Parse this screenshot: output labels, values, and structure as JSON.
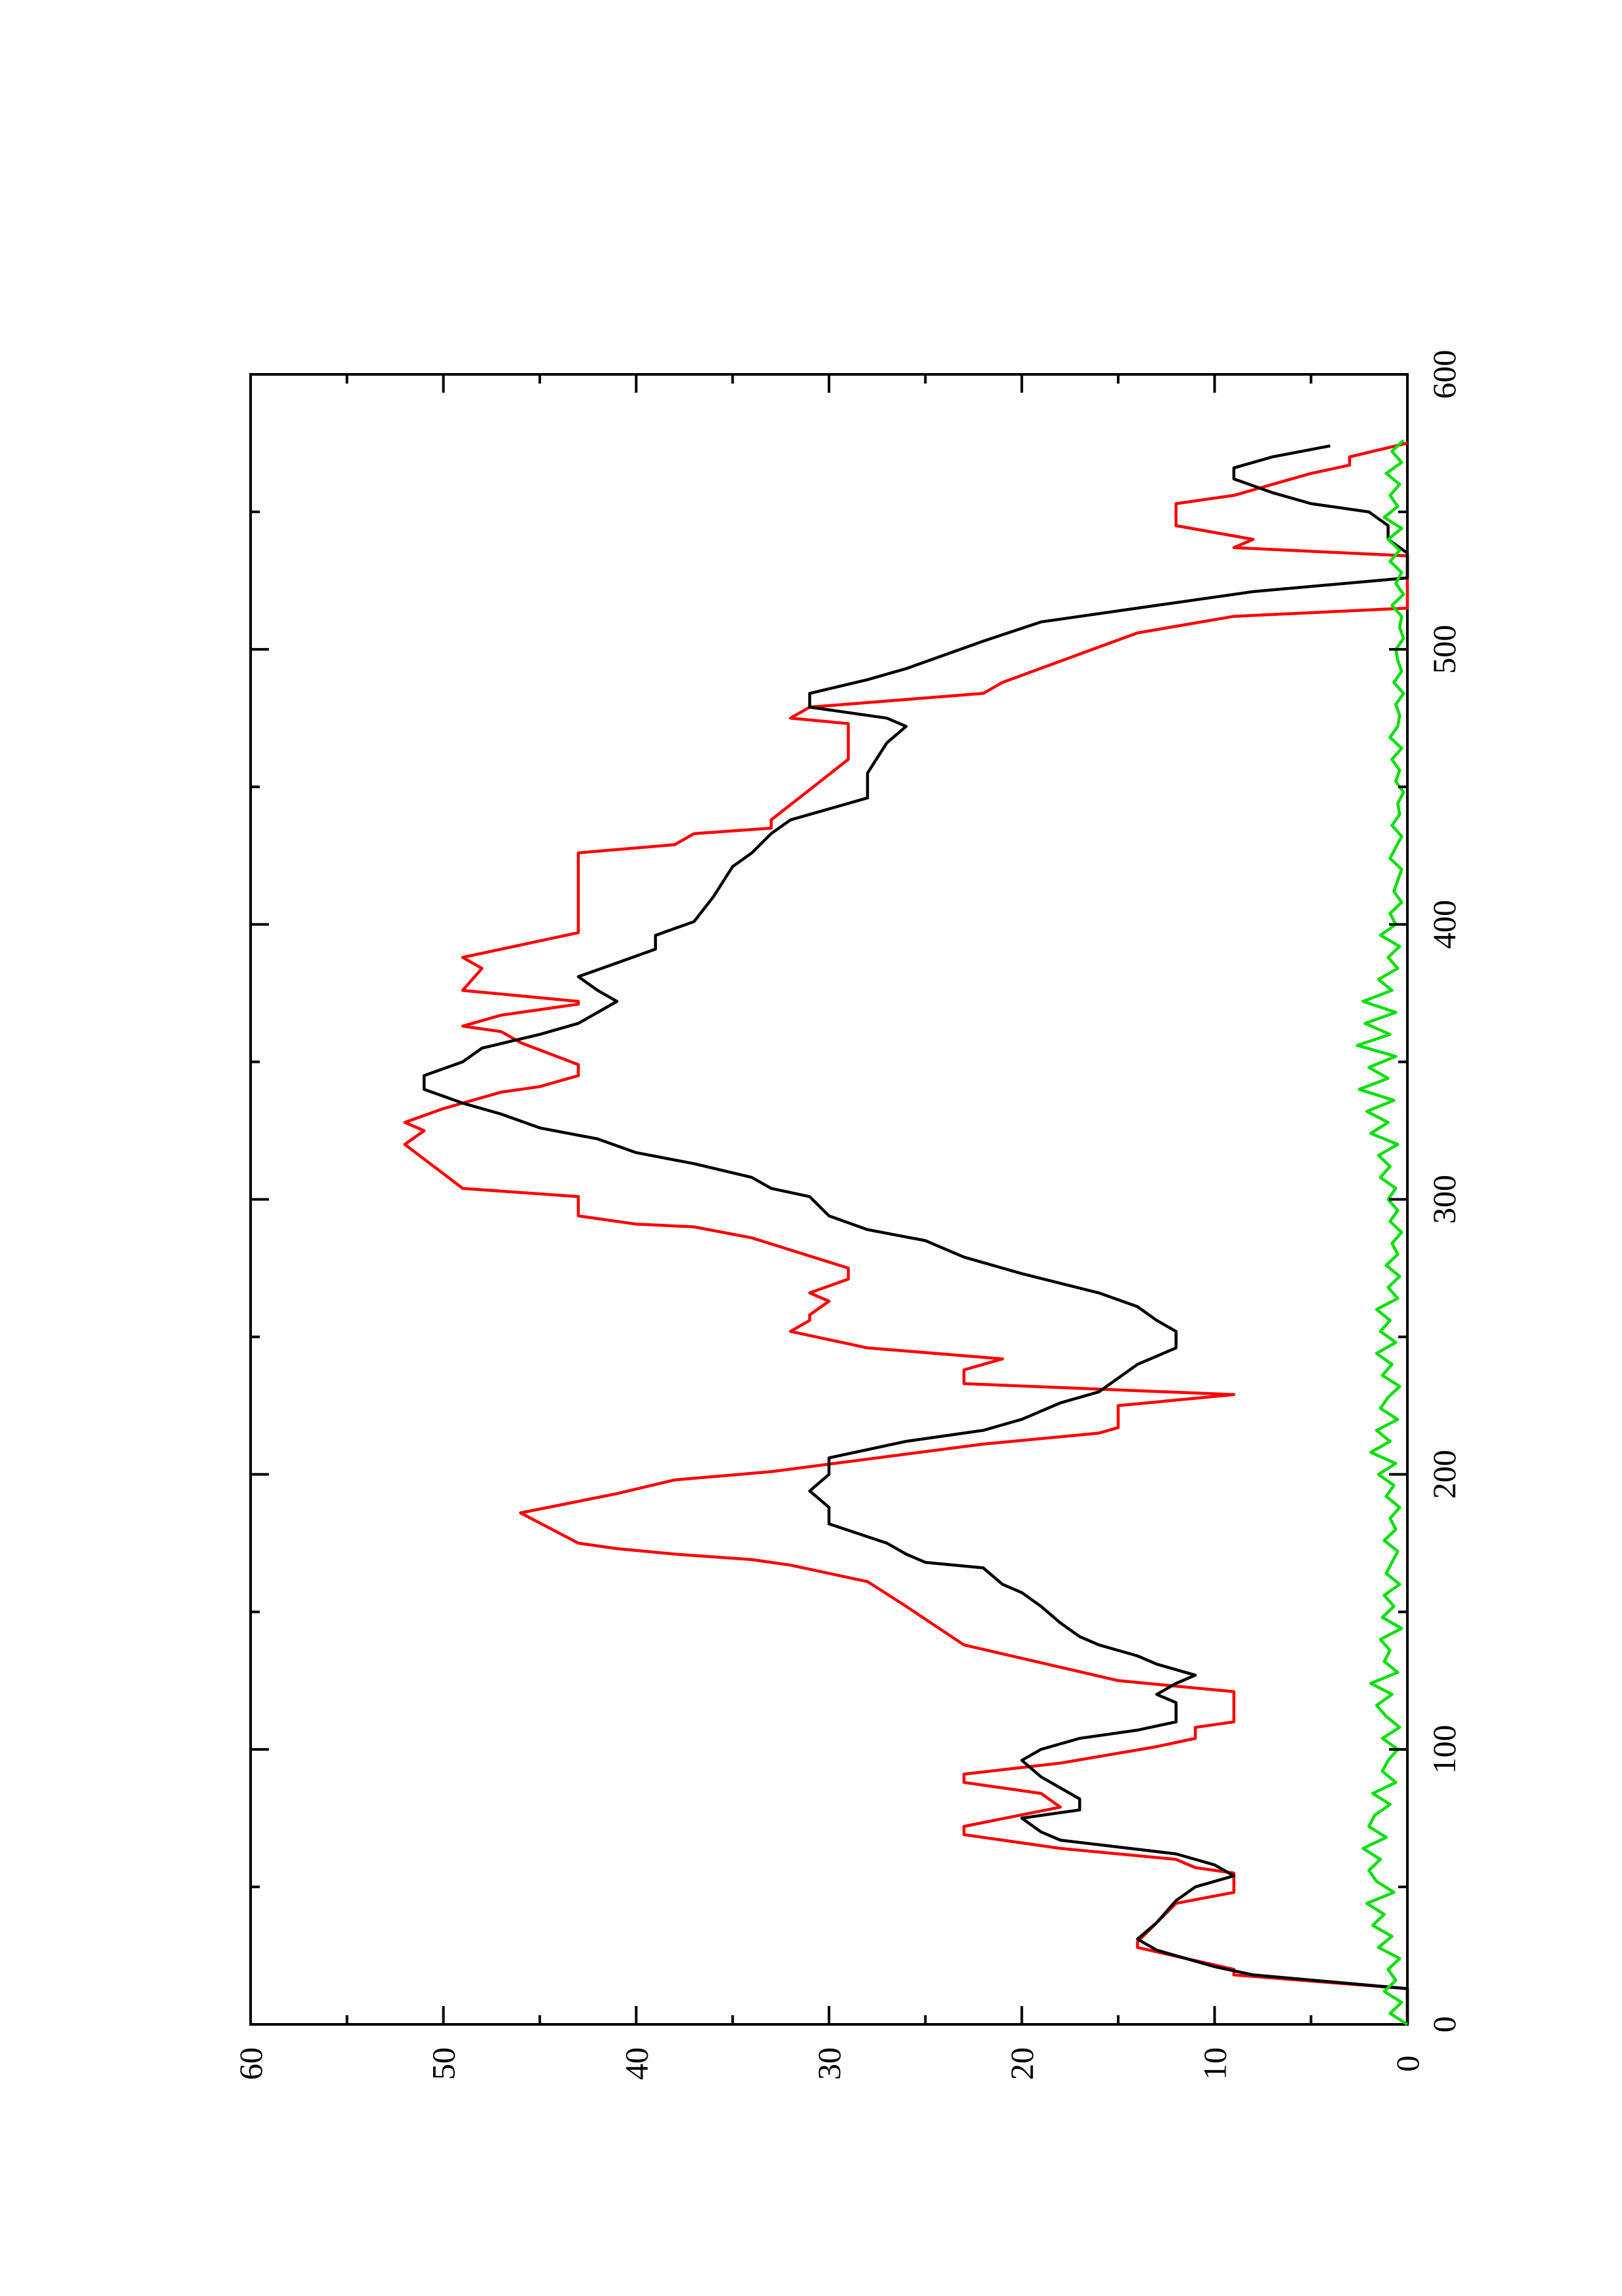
{
  "chart_data": {
    "type": "line",
    "orientation": "rotated-90-ccw",
    "title": "",
    "xlabel": "",
    "ylabel": "",
    "xlim": [
      0,
      600
    ],
    "ylim": [
      0,
      60
    ],
    "x_ticks": [
      0,
      100,
      200,
      300,
      400,
      500,
      600
    ],
    "x_tick_labels": [
      "0",
      "100",
      "200",
      "300",
      "400",
      "500",
      "600"
    ],
    "y_ticks": [
      0,
      10,
      20,
      30,
      40,
      50,
      60
    ],
    "y_tick_labels": [
      "0",
      "10",
      "20",
      "30",
      "40",
      "50",
      "60"
    ],
    "grid": false,
    "legend": "none",
    "series": [
      {
        "color": "#ff0000",
        "x": [
          0,
          13,
          18,
          20,
          28,
          30,
          37,
          44,
          48,
          55,
          57,
          60,
          64,
          69,
          72,
          79,
          84,
          88,
          91,
          95,
          101,
          104,
          108,
          110,
          121,
          125,
          138,
          152,
          161,
          167,
          169,
          171,
          173,
          175,
          186,
          193,
          198,
          201,
          211,
          215,
          217,
          225,
          229,
          233,
          238,
          242,
          246,
          252,
          256,
          258,
          263,
          266,
          271,
          275,
          286,
          290,
          291,
          294,
          301,
          304,
          320,
          325,
          328,
          333,
          339,
          341,
          345,
          349,
          357,
          361,
          363,
          367,
          371,
          372,
          376,
          384,
          388,
          397,
          401,
          422,
          426,
          429,
          433,
          435,
          438,
          460,
          465,
          473,
          475,
          479,
          484,
          488,
          506,
          512,
          515,
          534,
          537,
          540,
          545,
          553,
          556,
          558,
          560,
          564,
          567,
          570,
          575
        ],
        "y": [
          0,
          0,
          9,
          9,
          14,
          14,
          13,
          12,
          9,
          9,
          11,
          12,
          18,
          23,
          23,
          18,
          19,
          23,
          23,
          18,
          13,
          11,
          11,
          9,
          9,
          15,
          23,
          26,
          28,
          32,
          34,
          38,
          41,
          43,
          46,
          41,
          38,
          33,
          22,
          16,
          15,
          15,
          9,
          23,
          23,
          21,
          28,
          32,
          31,
          31,
          30,
          31,
          29,
          29,
          34,
          37,
          40,
          43,
          43,
          49,
          52,
          51,
          52,
          50,
          47,
          45,
          43,
          43,
          46,
          47,
          49,
          47,
          43,
          43,
          49,
          48,
          49,
          43,
          43,
          43,
          43,
          38,
          37,
          33,
          33,
          29,
          29,
          29,
          32,
          31,
          22,
          21,
          14,
          9,
          0,
          0,
          9,
          8,
          12,
          12,
          9,
          8,
          7,
          5,
          3,
          3,
          0
        ]
      },
      {
        "color": "#000000",
        "x": [
          0,
          13,
          18,
          21,
          27,
          31,
          37,
          45,
          50,
          54,
          58,
          62,
          67,
          70,
          75,
          78,
          82,
          90,
          96,
          100,
          104,
          107,
          110,
          114,
          117,
          120,
          124,
          127,
          131,
          134,
          138,
          141,
          146,
          152,
          157,
          160,
          166,
          168,
          171,
          175,
          182,
          188,
          194,
          200,
          206,
          212,
          216,
          220,
          226,
          230,
          235,
          240,
          246,
          252,
          256,
          261,
          266,
          273,
          279,
          285,
          289,
          294,
          301,
          304,
          308,
          313,
          317,
          322,
          326,
          331,
          335,
          340,
          345,
          350,
          355,
          360,
          364,
          368,
          372,
          376,
          381,
          386,
          391,
          396,
          401,
          410,
          421,
          426,
          433,
          438,
          442,
          446,
          455,
          466,
          472,
          475,
          479,
          484,
          489,
          493,
          503,
          510,
          515,
          521,
          526,
          530,
          535,
          540,
          545,
          550,
          553,
          557,
          562,
          566,
          570,
          574
        ],
        "y": [
          0,
          0,
          8,
          10,
          13,
          14,
          13,
          12,
          11,
          9,
          10,
          12,
          18,
          19,
          20,
          17,
          17,
          19,
          20,
          19,
          17,
          14,
          12,
          12,
          12,
          13,
          12,
          11,
          13,
          14,
          16,
          17,
          18,
          19,
          20,
          21,
          22,
          25,
          26,
          27,
          30,
          30,
          31,
          30,
          30,
          26,
          22,
          20,
          18,
          16,
          15,
          14,
          12,
          12,
          13,
          14,
          16,
          20,
          23,
          25,
          28,
          30,
          31,
          33,
          34,
          37,
          40,
          42,
          45,
          47,
          49,
          51,
          51,
          49,
          48,
          45,
          43,
          42,
          41,
          42,
          43,
          41,
          39,
          39,
          37,
          36,
          35,
          34,
          33,
          32,
          30,
          28,
          28,
          27,
          26,
          27,
          31,
          31,
          28,
          26,
          22,
          19,
          14,
          8,
          0,
          0,
          0,
          1,
          1,
          2,
          5,
          7,
          9,
          9,
          7,
          4
        ]
      },
      {
        "color": "#00e000",
        "x": [
          0,
          4,
          8,
          12,
          16,
          20,
          24,
          28,
          32,
          36,
          40,
          44,
          48,
          52,
          56,
          60,
          64,
          68,
          72,
          76,
          80,
          84,
          88,
          92,
          96,
          100,
          104,
          108,
          112,
          116,
          120,
          124,
          128,
          132,
          136,
          140,
          144,
          148,
          152,
          156,
          160,
          164,
          168,
          172,
          176,
          180,
          184,
          188,
          192,
          196,
          200,
          204,
          208,
          212,
          216,
          220,
          224,
          228,
          232,
          236,
          240,
          244,
          248,
          252,
          256,
          260,
          264,
          268,
          272,
          276,
          280,
          284,
          288,
          292,
          296,
          300,
          304,
          308,
          312,
          316,
          320,
          324,
          328,
          332,
          336,
          340,
          344,
          348,
          352,
          356,
          360,
          364,
          368,
          372,
          376,
          380,
          384,
          388,
          392,
          396,
          400,
          404,
          408,
          412,
          416,
          420,
          424,
          428,
          432,
          436,
          440,
          444,
          448,
          452,
          456,
          460,
          464,
          468,
          472,
          476,
          480,
          484,
          488,
          492,
          496,
          500,
          504,
          508,
          512,
          516,
          520,
          524,
          528,
          532,
          536,
          540,
          544,
          548,
          552,
          556,
          560,
          564,
          568,
          572,
          576
        ],
        "y": [
          0,
          0.9,
          0.3,
          1.2,
          0.6,
          1.0,
          0.4,
          1.5,
          0.8,
          1.8,
          1.2,
          2.1,
          0.7,
          1.6,
          2.0,
          1.4,
          2.3,
          1.1,
          2.0,
          1.7,
          0.9,
          1.8,
          0.6,
          1.3,
          1.0,
          0.5,
          1.3,
          0.4,
          1.1,
          1.6,
          0.8,
          1.9,
          0.5,
          1.2,
          0.9,
          1.4,
          0.3,
          1.3,
          0.7,
          1.2,
          0.4,
          1.1,
          0.8,
          0.5,
          1.2,
          0.6,
          0.9,
          0.4,
          1.1,
          0.7,
          1.5,
          0.6,
          1.9,
          0.9,
          1.6,
          0.5,
          1.4,
          1.0,
          0.4,
          1.3,
          0.8,
          1.6,
          0.6,
          1.4,
          0.9,
          1.6,
          0.5,
          1.0,
          0.4,
          1.1,
          0.5,
          0.8,
          0.3,
          0.9,
          0.5,
          1.0,
          0.6,
          1.4,
          0.9,
          1.5,
          0.5,
          1.9,
          1.0,
          2.1,
          0.7,
          2.5,
          1.0,
          2.0,
          0.6,
          2.6,
          0.9,
          2.2,
          0.6,
          2.3,
          0.8,
          1.5,
          0.5,
          1.0,
          0.4,
          1.4,
          0.6,
          0.9,
          0.3,
          0.7,
          0.5,
          0.3,
          0.9,
          0.6,
          0.3,
          0.8,
          0.4,
          0.5,
          0.2,
          0.6,
          0.4,
          0.8,
          0.3,
          0.9,
          0.5,
          0.4,
          0.6,
          0.2,
          0.7,
          0.3,
          0.5,
          0.6,
          0.2,
          0.4,
          0.3,
          0.8,
          0.2,
          0.6,
          0.3,
          0.9,
          0.4,
          1.0,
          0.3,
          1.2,
          0.5,
          0.9,
          0.4,
          1.1,
          0.3,
          0.8,
          0.2
        ]
      }
    ]
  }
}
